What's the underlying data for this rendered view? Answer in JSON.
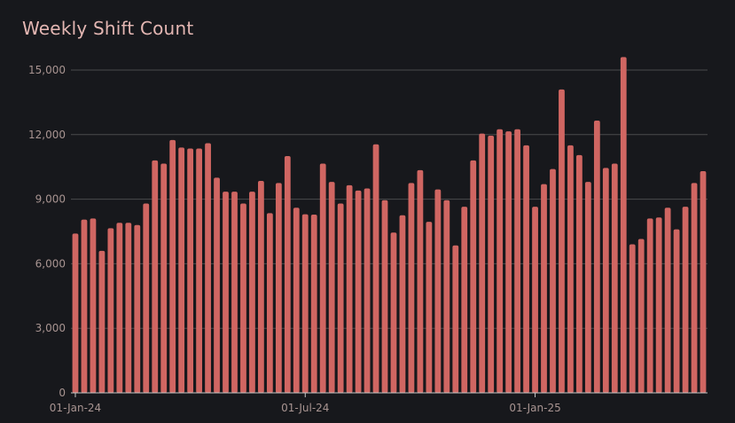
{
  "colors": {
    "background": "#17181c",
    "bar": "#d06662",
    "title": "#e3b6b2",
    "tick": "#a89491",
    "grid": "#4a4a4d"
  },
  "chart_data": {
    "type": "bar",
    "title": "Weekly Shift Count",
    "xlabel": "",
    "ylabel": "",
    "ylim": [
      0,
      15700
    ],
    "grid": true,
    "legend": "none",
    "y_ticks": [
      0,
      3000,
      6000,
      9000,
      12000,
      15000
    ],
    "y_tick_labels": [
      "0",
      "3,000",
      "6,000",
      "9,000",
      "12,000",
      "15,000"
    ],
    "x_tick_labels": [
      {
        "index": 0,
        "label": "01-Jan-24"
      },
      {
        "index": 26,
        "label": "01-Jul-24"
      },
      {
        "index": 52,
        "label": "01-Jan-25"
      }
    ],
    "categories": [
      "2024-01-01",
      "2024-01-08",
      "2024-01-15",
      "2024-01-22",
      "2024-01-29",
      "2024-02-05",
      "2024-02-12",
      "2024-02-19",
      "2024-02-26",
      "2024-03-04",
      "2024-03-11",
      "2024-03-18",
      "2024-03-25",
      "2024-04-01",
      "2024-04-08",
      "2024-04-15",
      "2024-04-22",
      "2024-04-29",
      "2024-05-06",
      "2024-05-13",
      "2024-05-20",
      "2024-05-27",
      "2024-06-03",
      "2024-06-10",
      "2024-06-17",
      "2024-06-24",
      "2024-07-01",
      "2024-07-08",
      "2024-07-15",
      "2024-07-22",
      "2024-07-29",
      "2024-08-05",
      "2024-08-12",
      "2024-08-19",
      "2024-08-26",
      "2024-09-02",
      "2024-09-09",
      "2024-09-16",
      "2024-09-23",
      "2024-09-30",
      "2024-10-07",
      "2024-10-14",
      "2024-10-21",
      "2024-10-28",
      "2024-11-04",
      "2024-11-11",
      "2024-11-18",
      "2024-11-25",
      "2024-12-02",
      "2024-12-09",
      "2024-12-16",
      "2024-12-23",
      "2024-12-30",
      "2025-01-06",
      "2025-01-13",
      "2025-01-20",
      "2025-01-27",
      "2025-02-03",
      "2025-02-10",
      "2025-02-17",
      "2025-02-24",
      "2025-03-03",
      "2025-03-10",
      "2025-03-17",
      "2025-03-24",
      "2025-03-31",
      "2025-04-07",
      "2025-04-14",
      "2025-04-21",
      "2025-04-28",
      "2025-05-05",
      "2025-05-12"
    ],
    "values": [
      7400,
      8050,
      8100,
      6600,
      7650,
      7900,
      7900,
      7800,
      8800,
      10800,
      10650,
      11750,
      11400,
      11350,
      11350,
      11600,
      10000,
      9350,
      9350,
      8800,
      9350,
      9850,
      8350,
      9750,
      11000,
      8600,
      8300,
      8280,
      10650,
      9800,
      8800,
      9650,
      9400,
      9500,
      11550,
      8950,
      7450,
      8250,
      9750,
      10350,
      7950,
      9450,
      8950,
      6850,
      8650,
      10800,
      12050,
      11950,
      12250,
      12150,
      12250,
      11500,
      8650,
      9700,
      10400,
      14100,
      11500,
      11050,
      9800,
      12650,
      10450,
      10650,
      15600,
      6900,
      7150,
      8100,
      8150,
      8600,
      7600,
      8650,
      9750,
      10300
    ]
  }
}
